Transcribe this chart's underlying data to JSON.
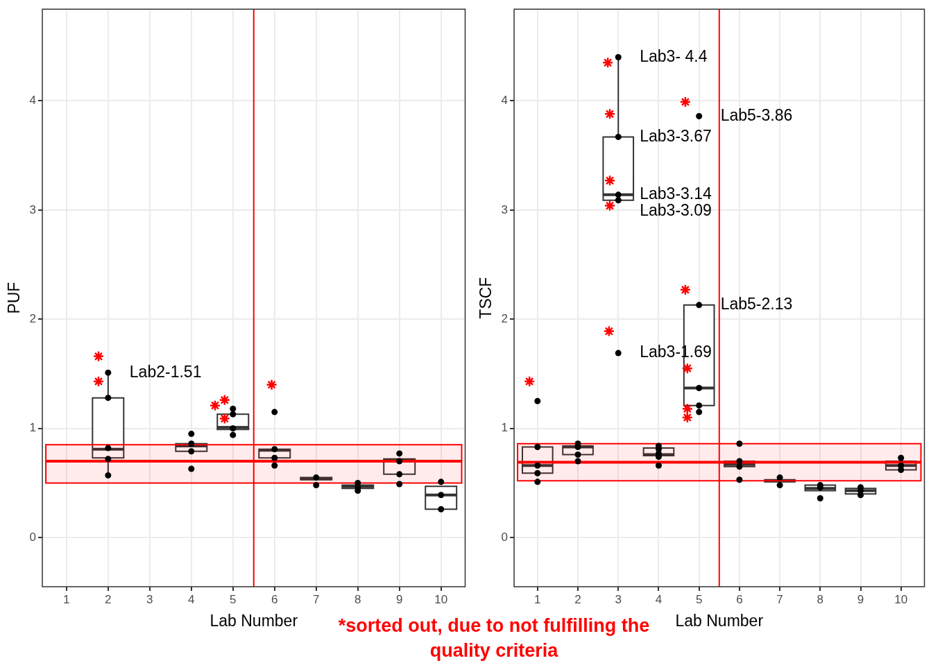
{
  "chart_data": [
    {
      "type": "box",
      "xlabel": "Lab Number",
      "ylabel": "PUF",
      "x": [
        2,
        4,
        5,
        6,
        7,
        8,
        9,
        10
      ],
      "xlim": [
        0.42,
        10.58
      ],
      "xticks": [
        1,
        2,
        3,
        4,
        5,
        6,
        7,
        8,
        9,
        10
      ],
      "ylim": [
        -0.45,
        4.84
      ],
      "yticks": [
        0,
        1,
        2,
        3,
        4
      ],
      "grid": true,
      "boxes": [
        {
          "low": 0.57,
          "q1": 0.73,
          "median": 0.81,
          "q3": 1.28,
          "high": 1.51
        },
        {
          "low": 0.79,
          "q1": 0.79,
          "median": 0.84,
          "q3": 0.86,
          "high": 0.86
        },
        {
          "low": 0.99,
          "q1": 0.99,
          "median": 1.01,
          "q3": 1.13,
          "high": 1.13
        },
        {
          "low": 0.73,
          "q1": 0.73,
          "median": 0.8,
          "q3": 0.81,
          "high": 0.81
        },
        {
          "low": 0.53,
          "q1": 0.53,
          "median": 0.54,
          "q3": 0.55,
          "high": 0.55
        },
        {
          "low": 0.45,
          "q1": 0.45,
          "median": 0.47,
          "q3": 0.48,
          "high": 0.48
        },
        {
          "low": 0.58,
          "q1": 0.58,
          "median": 0.71,
          "q3": 0.72,
          "high": 0.72
        },
        {
          "low": 0.26,
          "q1": 0.26,
          "median": 0.39,
          "q3": 0.47,
          "high": 0.47
        }
      ],
      "series": [
        {
          "type": "scatter",
          "marker": "circle",
          "color": "#000000",
          "x": [
            2,
            2,
            2,
            2,
            2,
            4,
            4,
            4,
            4,
            5,
            5,
            5,
            5,
            6,
            6,
            6,
            6,
            7,
            7,
            8,
            8,
            8,
            9,
            9,
            9,
            9,
            10,
            10,
            10
          ],
          "values": [
            1.51,
            1.28,
            0.82,
            0.72,
            0.57,
            0.95,
            0.86,
            0.79,
            0.63,
            1.18,
            1.13,
            1.0,
            0.94,
            1.15,
            0.81,
            0.73,
            0.66,
            0.55,
            0.48,
            0.5,
            0.46,
            0.43,
            0.77,
            0.7,
            0.58,
            0.49,
            0.51,
            0.39,
            0.26
          ]
        },
        {
          "type": "scatter",
          "marker": "cross",
          "color": "#ff0000",
          "x": [
            1.77,
            1.77,
            4.57,
            4.8,
            4.8,
            5.93
          ],
          "values": [
            1.66,
            1.43,
            1.21,
            1.26,
            1.09,
            1.4
          ]
        }
      ],
      "ref_lines": [
        {
          "axis": "y",
          "value": 0.7,
          "color": "#ff0000"
        },
        {
          "axis": "x",
          "value": 5.5,
          "color": "#ff0000"
        }
      ],
      "bands": [
        {
          "axis": "y",
          "from": 0.5,
          "to": 0.85,
          "color": "#ff0000"
        }
      ],
      "annotations": [
        {
          "text": "Lab2-1.51",
          "x": 2,
          "y": 1.51
        },
        "*sorted out, due to not fulfilling the quality criteria"
      ]
    },
    {
      "type": "box",
      "xlabel": "Lab Number",
      "ylabel": "TSCF",
      "x": [
        1,
        2,
        3,
        4,
        5,
        6,
        7,
        8,
        9,
        10
      ],
      "xlim": [
        0.42,
        10.58
      ],
      "xticks": [
        1,
        2,
        3,
        4,
        5,
        6,
        7,
        8,
        9,
        10
      ],
      "ylim": [
        -0.45,
        4.84
      ],
      "yticks": [
        0,
        1,
        2,
        3,
        4
      ],
      "grid": true,
      "boxes": [
        {
          "low": 0.59,
          "q1": 0.59,
          "median": 0.66,
          "q3": 0.83,
          "high": 0.83
        },
        {
          "low": 0.76,
          "q1": 0.76,
          "median": 0.83,
          "q3": 0.84,
          "high": 0.84
        },
        {
          "low": 3.09,
          "q1": 3.09,
          "median": 3.14,
          "q3": 3.67,
          "high": 4.4
        },
        {
          "low": 0.75,
          "q1": 0.75,
          "median": 0.76,
          "q3": 0.82,
          "high": 0.82
        },
        {
          "low": 1.21,
          "q1": 1.21,
          "median": 1.37,
          "q3": 2.13,
          "high": 2.13
        },
        {
          "low": 0.65,
          "q1": 0.65,
          "median": 0.67,
          "q3": 0.7,
          "high": 0.7
        },
        {
          "low": 0.51,
          "q1": 0.51,
          "median": 0.52,
          "q3": 0.53,
          "high": 0.53
        },
        {
          "low": 0.43,
          "q1": 0.43,
          "median": 0.45,
          "q3": 0.48,
          "high": 0.48
        },
        {
          "low": 0.4,
          "q1": 0.4,
          "median": 0.43,
          "q3": 0.45,
          "high": 0.45
        },
        {
          "low": 0.62,
          "q1": 0.62,
          "median": 0.66,
          "q3": 0.7,
          "high": 0.7
        }
      ],
      "series": [
        {
          "type": "scatter",
          "marker": "circle",
          "color": "#000000",
          "x": [
            1,
            1,
            1,
            1,
            1,
            2,
            2,
            2,
            2,
            3,
            3,
            3,
            3,
            3,
            4,
            4,
            4,
            4,
            4,
            5,
            5,
            5,
            5,
            5,
            6,
            6,
            6,
            6,
            7,
            7,
            8,
            8,
            8,
            9,
            9,
            9,
            10,
            10,
            10
          ],
          "values": [
            1.25,
            0.83,
            0.66,
            0.59,
            0.51,
            0.86,
            0.83,
            0.76,
            0.7,
            4.4,
            3.67,
            3.14,
            3.09,
            1.69,
            0.84,
            0.81,
            0.77,
            0.74,
            0.66,
            3.86,
            2.13,
            1.37,
            1.21,
            1.15,
            0.86,
            0.7,
            0.65,
            0.53,
            0.55,
            0.48,
            0.48,
            0.46,
            0.36,
            0.46,
            0.43,
            0.39,
            0.73,
            0.66,
            0.62
          ]
        },
        {
          "type": "scatter",
          "marker": "cross",
          "color": "#ff0000",
          "x": [
            0.8,
            2.74,
            2.79,
            2.79,
            2.79,
            2.77,
            4.66,
            4.66,
            4.71,
            4.71,
            4.71
          ],
          "values": [
            1.43,
            4.35,
            3.88,
            3.27,
            3.04,
            1.89,
            3.99,
            2.27,
            1.55,
            1.18,
            1.1
          ]
        }
      ],
      "ref_lines": [
        {
          "axis": "y",
          "value": 0.69,
          "color": "#ff0000"
        },
        {
          "axis": "x",
          "value": 5.5,
          "color": "#ff0000"
        }
      ],
      "bands": [
        {
          "axis": "y",
          "from": 0.52,
          "to": 0.86,
          "color": "#ff0000"
        }
      ],
      "annotations": [
        {
          "text": "Lab3- 4.4",
          "x": 3,
          "y": 4.4
        },
        {
          "text": "Lab5-3.86",
          "x": 5,
          "y": 3.86
        },
        {
          "text": "Lab3-3.67",
          "x": 3,
          "y": 3.67
        },
        {
          "text": "Lab3-3.14",
          "x": 3,
          "y": 3.14
        },
        {
          "text": "Lab3-3.09",
          "x": 3,
          "y": 3.09
        },
        {
          "text": "Lab5-2.13",
          "x": 5,
          "y": 2.13
        },
        {
          "text": "Lab3-1.69",
          "x": 3,
          "y": 1.69
        }
      ]
    }
  ]
}
